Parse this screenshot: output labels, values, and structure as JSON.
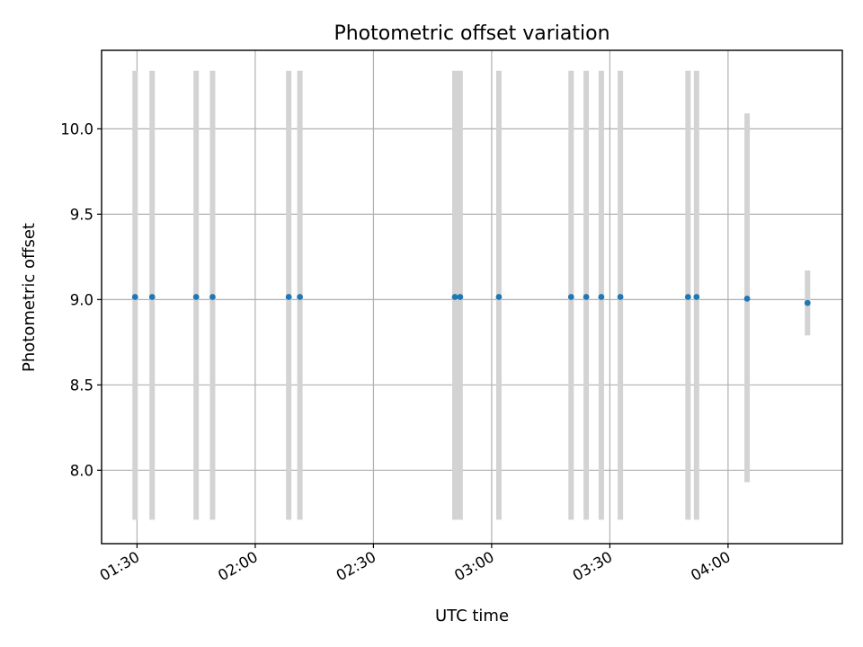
{
  "chart_data": {
    "type": "scatter",
    "title": "Photometric offset variation",
    "xlabel": "UTC time",
    "ylabel": "Photometric offset",
    "x_type": "time",
    "xlim": [
      "01:21",
      "04:29"
    ],
    "ylim": [
      7.57,
      10.46
    ],
    "x_ticks": [
      "01:30",
      "02:00",
      "02:30",
      "03:00",
      "03:30",
      "04:00"
    ],
    "y_ticks": [
      8.0,
      8.5,
      9.0,
      9.5,
      10.0
    ],
    "y_tick_labels": [
      "8.0",
      "8.5",
      "9.0",
      "9.5",
      "10.0"
    ],
    "grid": true,
    "colors": {
      "point": "#1f77b4",
      "error_bar": "#d3d3d3"
    },
    "points": [
      {
        "x": "01:29:30",
        "y": 9.015,
        "err_low": 7.71,
        "err_high": 10.34
      },
      {
        "x": "01:33:50",
        "y": 9.015,
        "err_low": 7.71,
        "err_high": 10.34
      },
      {
        "x": "01:45:00",
        "y": 9.015,
        "err_low": 7.71,
        "err_high": 10.34
      },
      {
        "x": "01:49:10",
        "y": 9.015,
        "err_low": 7.71,
        "err_high": 10.34
      },
      {
        "x": "02:08:30",
        "y": 9.015,
        "err_low": 7.71,
        "err_high": 10.34
      },
      {
        "x": "02:11:20",
        "y": 9.015,
        "err_low": 7.71,
        "err_high": 10.34
      },
      {
        "x": "02:50:40",
        "y": 9.015,
        "err_low": 7.71,
        "err_high": 10.34
      },
      {
        "x": "02:52:00",
        "y": 9.015,
        "err_low": 7.71,
        "err_high": 10.34
      },
      {
        "x": "03:01:50",
        "y": 9.015,
        "err_low": 7.71,
        "err_high": 10.34
      },
      {
        "x": "03:20:10",
        "y": 9.015,
        "err_low": 7.71,
        "err_high": 10.34
      },
      {
        "x": "03:24:00",
        "y": 9.015,
        "err_low": 7.71,
        "err_high": 10.34
      },
      {
        "x": "03:27:50",
        "y": 9.015,
        "err_low": 7.71,
        "err_high": 10.34
      },
      {
        "x": "03:32:40",
        "y": 9.015,
        "err_low": 7.71,
        "err_high": 10.34
      },
      {
        "x": "03:49:50",
        "y": 9.015,
        "err_low": 7.71,
        "err_high": 10.34
      },
      {
        "x": "03:52:00",
        "y": 9.015,
        "err_low": 7.71,
        "err_high": 10.34
      },
      {
        "x": "04:04:50",
        "y": 9.005,
        "err_low": 7.93,
        "err_high": 10.09
      },
      {
        "x": "04:20:10",
        "y": 8.98,
        "err_low": 8.79,
        "err_high": 9.17
      }
    ]
  }
}
